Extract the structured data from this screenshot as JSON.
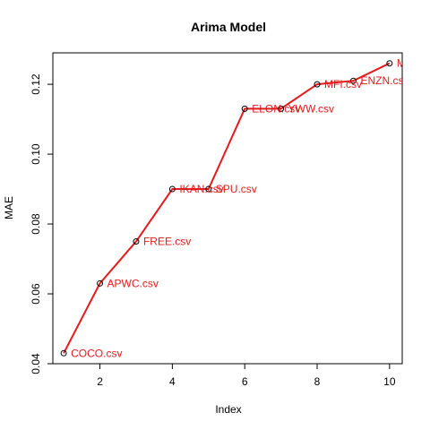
{
  "chart_data": {
    "type": "line",
    "title": "Arima Model",
    "xlabel": "Index",
    "ylabel": "MAE",
    "xlim": [
      0.7,
      10.35
    ],
    "ylim": [
      0.04,
      0.129
    ],
    "x_ticks": [
      2,
      4,
      6,
      8,
      10
    ],
    "y_ticks": [
      0.04,
      0.06,
      0.08,
      0.1,
      0.12
    ],
    "x_tick_labels": [
      "2",
      "4",
      "6",
      "8",
      "10"
    ],
    "y_tick_labels": [
      "0.04",
      "0.06",
      "0.08",
      "0.10",
      "0.12"
    ],
    "grid": false,
    "line_color": "#e41a1c",
    "series": [
      {
        "x": [
          1,
          2,
          3,
          4,
          5,
          6,
          7,
          8,
          9,
          10
        ],
        "values": [
          0.043,
          0.063,
          0.075,
          0.09,
          0.09,
          0.113,
          0.113,
          0.12,
          0.121,
          0.126
        ],
        "labels": [
          "COCO.csv",
          "APWC.csv",
          "FREE.csv",
          "IKAN.csv",
          "SPU.csv",
          "ELON.csv",
          "YWW.csv",
          "MFI.csv",
          "ENZN.csv",
          "M"
        ]
      }
    ]
  }
}
